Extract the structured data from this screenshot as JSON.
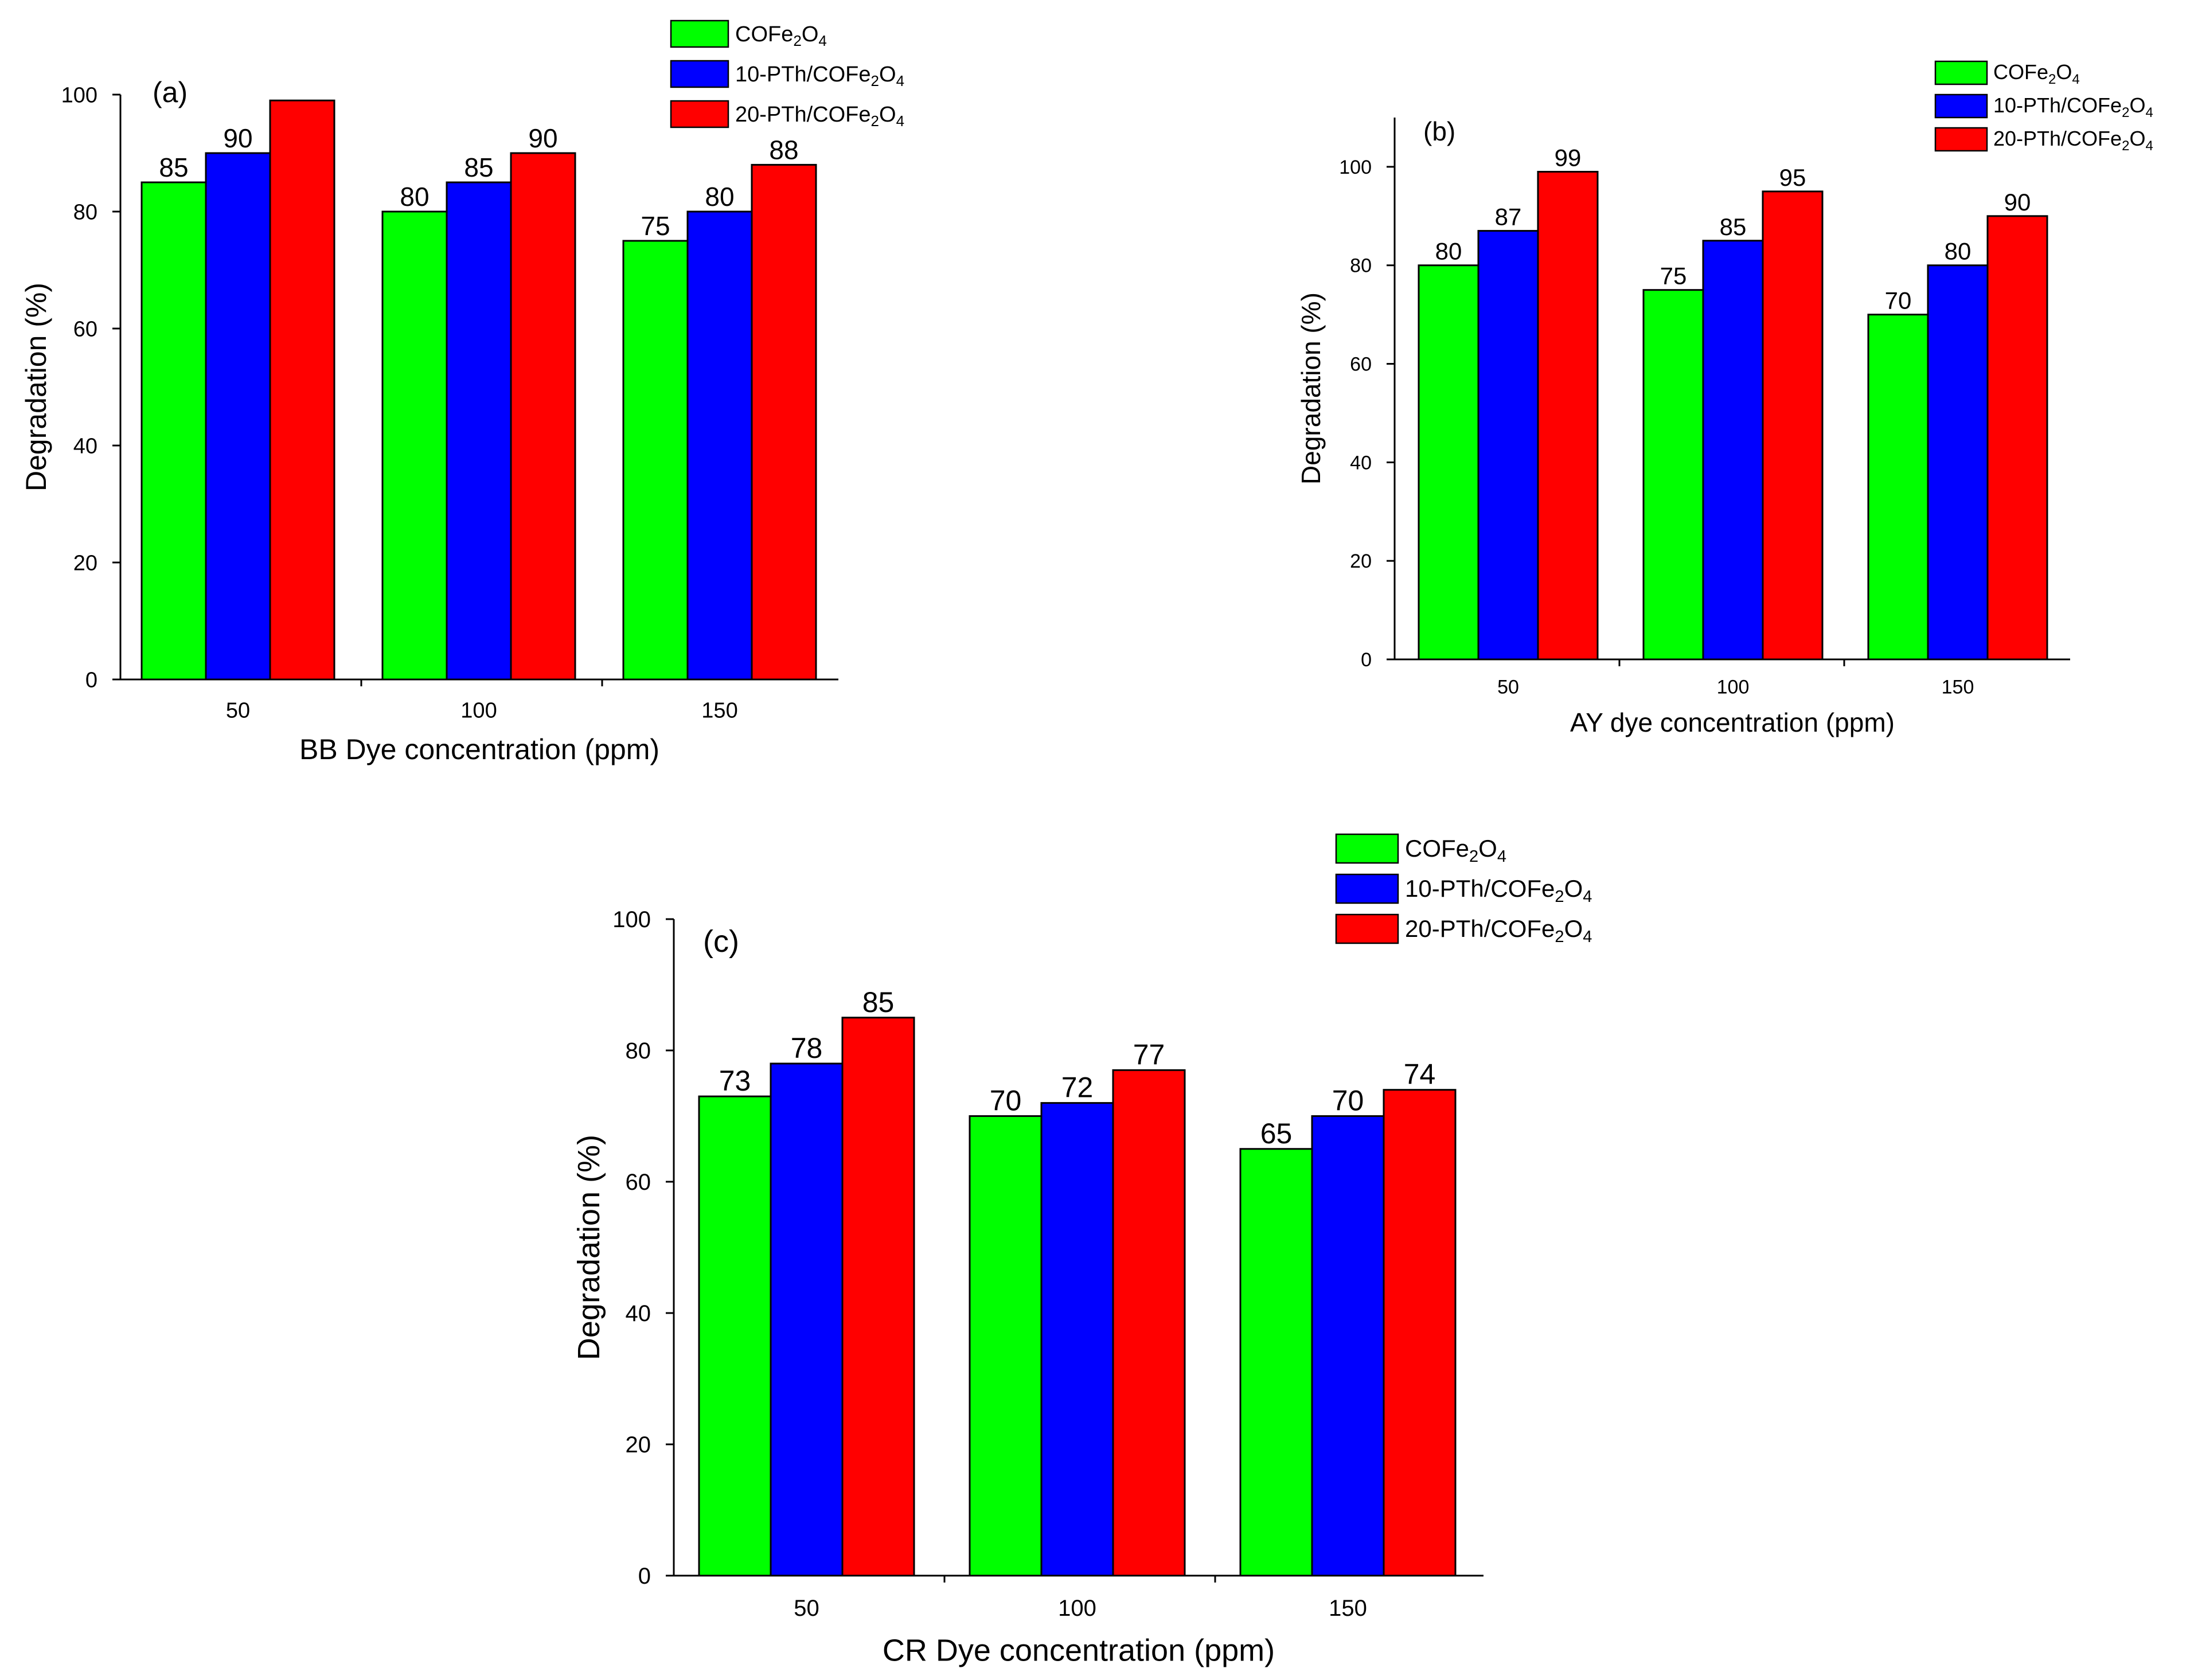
{
  "colors": {
    "green": "#00ff00",
    "blue": "#0000ff",
    "red": "#ff0000"
  },
  "chart_data": [
    {
      "type": "bar",
      "panel_label": "(a)",
      "title": "",
      "categories": [
        "50",
        "100",
        "150"
      ],
      "xlabel": "BB Dye concentration (ppm)",
      "ylabel": "Degradation (%)",
      "ylim": [
        0,
        100
      ],
      "yticks": [
        "0",
        "20",
        "40",
        "60",
        "80",
        "100"
      ],
      "grid": false,
      "legend_position": "top-right",
      "legend": [
        {
          "prefix": "COFe",
          "sub1": "2",
          "mid": "O",
          "sub2": "4",
          "color": "#00ff00"
        },
        {
          "prefix": "10-PTh/COFe",
          "sub1": "2",
          "mid": "O",
          "sub2": "4",
          "color": "#0000ff"
        },
        {
          "prefix": "20-PTh/COFe",
          "sub1": "2",
          "mid": "O",
          "sub2": "4",
          "color": "#ff0000"
        }
      ],
      "series": [
        {
          "name": "COFe2O4",
          "color": "#00ff00",
          "values": [
            85,
            80,
            75
          ],
          "labels": [
            "85",
            "80",
            "75"
          ]
        },
        {
          "name": "10-PTh/COFe2O4",
          "color": "#0000ff",
          "values": [
            90,
            85,
            80
          ],
          "labels": [
            "90",
            "85",
            "80"
          ]
        },
        {
          "name": "20-PTh/COFe2O4",
          "color": "#ff0000",
          "values": [
            99,
            90,
            88
          ],
          "labels": [
            "",
            "90",
            "88"
          ]
        }
      ]
    },
    {
      "type": "bar",
      "panel_label": "(b)",
      "title": "",
      "categories": [
        "50",
        "100",
        "150"
      ],
      "xlabel": "AY dye concentration (ppm)",
      "ylabel": "Degradation (%)",
      "ylim": [
        0,
        110
      ],
      "yticks": [
        "0",
        "20",
        "40",
        "60",
        "80",
        "100"
      ],
      "grid": false,
      "legend_position": "top-right",
      "legend": [
        {
          "prefix": "COFe",
          "sub1": "2",
          "mid": "O",
          "sub2": "4",
          "color": "#00ff00"
        },
        {
          "prefix": "10-PTh/COFe",
          "sub1": "2",
          "mid": "O",
          "sub2": "4",
          "color": "#0000ff"
        },
        {
          "prefix": "20-PTh/COFe",
          "sub1": "2",
          "mid": "O",
          "sub2": "4",
          "color": "#ff0000"
        }
      ],
      "series": [
        {
          "name": "COFe2O4",
          "color": "#00ff00",
          "values": [
            80,
            75,
            70
          ],
          "labels": [
            "80",
            "75",
            "70"
          ]
        },
        {
          "name": "10-PTh/COFe2O4",
          "color": "#0000ff",
          "values": [
            87,
            85,
            80
          ],
          "labels": [
            "87",
            "85",
            "80"
          ]
        },
        {
          "name": "20-PTh/COFe2O4",
          "color": "#ff0000",
          "values": [
            99,
            95,
            90
          ],
          "labels": [
            "99",
            "95",
            "90"
          ]
        }
      ]
    },
    {
      "type": "bar",
      "panel_label": "(c)",
      "title": "",
      "categories": [
        "50",
        "100",
        "150"
      ],
      "xlabel": "CR Dye concentration (ppm)",
      "ylabel": "Degradation (%)",
      "ylim": [
        0,
        100
      ],
      "yticks": [
        "0",
        "20",
        "40",
        "60",
        "80",
        "100"
      ],
      "grid": false,
      "legend_position": "top-right",
      "legend": [
        {
          "prefix": "COFe",
          "sub1": "2",
          "mid": "O",
          "sub2": "4",
          "color": "#00ff00"
        },
        {
          "prefix": "10-PTh/COFe",
          "sub1": "2",
          "mid": "O",
          "sub2": "4",
          "color": "#0000ff"
        },
        {
          "prefix": "20-PTh/COFe",
          "sub1": "2",
          "mid": "O",
          "sub2": "4",
          "color": "#ff0000"
        }
      ],
      "series": [
        {
          "name": "COFe2O4",
          "color": "#00ff00",
          "values": [
            73,
            70,
            65
          ],
          "labels": [
            "73",
            "70",
            "65"
          ]
        },
        {
          "name": "10-PTh/COFe2O4",
          "color": "#0000ff",
          "values": [
            78,
            72,
            70
          ],
          "labels": [
            "78",
            "72",
            "70"
          ]
        },
        {
          "name": "20-PTh/COFe2O4",
          "color": "#ff0000",
          "values": [
            85,
            77,
            74
          ],
          "labels": [
            "85",
            "77",
            "74"
          ]
        }
      ]
    }
  ]
}
